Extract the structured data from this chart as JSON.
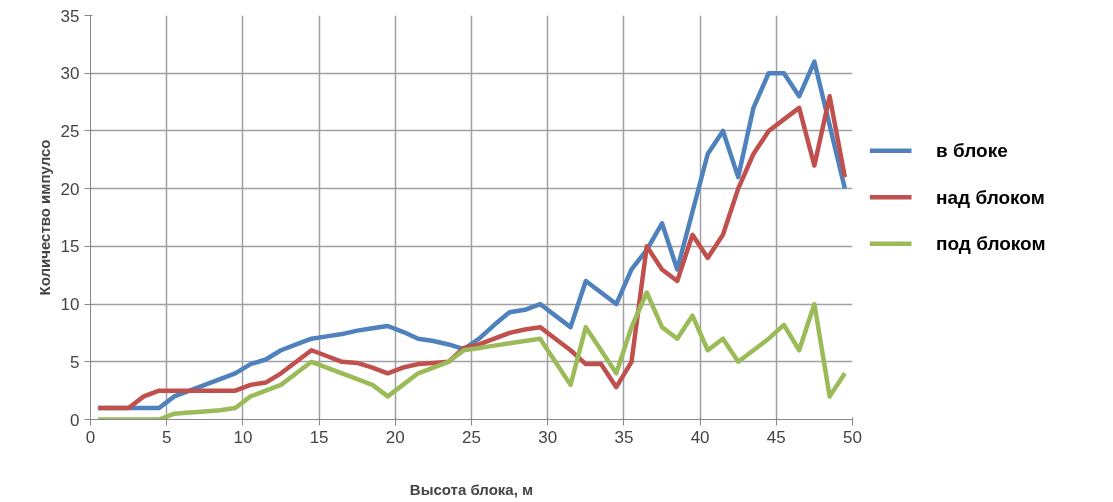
{
  "chart_data": {
    "type": "line",
    "xlabel": "Высота блока, м",
    "ylabel": "Количество импулсо",
    "x": [
      0.5,
      1.5,
      2.5,
      3.5,
      4.5,
      5.5,
      6.5,
      7.5,
      8.5,
      9.5,
      10.5,
      11.5,
      12.5,
      13.5,
      14.5,
      15.5,
      16.5,
      17.5,
      18.5,
      19.5,
      20.5,
      21.5,
      22.5,
      23.5,
      24.5,
      25.5,
      26.5,
      27.5,
      28.5,
      29.5,
      30.5,
      31.5,
      32.5,
      33.5,
      34.5,
      35.5,
      36.5,
      37.5,
      38.5,
      39.5,
      40.5,
      41.5,
      42.5,
      43.5,
      44.5,
      45.5,
      46.5,
      47.5,
      48.5,
      49.5
    ],
    "series": [
      {
        "name": "в блоке",
        "color": "#4f81bd",
        "values": [
          1,
          1,
          1,
          1,
          1,
          2,
          2.5,
          3,
          3.5,
          4,
          4.8,
          5.2,
          6,
          6.5,
          7,
          7.2,
          7.4,
          7.7,
          7.9,
          8.1,
          7.6,
          7,
          6.8,
          6.5,
          6.1,
          7,
          8.2,
          9.3,
          9.5,
          10,
          9,
          8,
          12,
          11,
          10,
          13,
          14.7,
          17,
          13,
          18,
          23,
          25,
          21,
          27,
          30,
          30,
          28,
          31,
          25.5,
          20
        ]
      },
      {
        "name": "над блоком",
        "color": "#c0504d",
        "values": [
          1,
          1,
          1,
          2,
          2.5,
          2.5,
          2.5,
          2.5,
          2.5,
          2.5,
          3,
          3.2,
          4,
          5,
          6,
          5.5,
          5,
          4.9,
          4.5,
          4,
          4.5,
          4.8,
          4.9,
          5,
          6.2,
          6.5,
          7,
          7.5,
          7.8,
          8,
          7,
          6,
          4.8,
          4.8,
          2.8,
          5,
          15,
          13,
          12,
          16,
          14,
          16,
          20,
          23,
          25,
          26,
          27,
          22,
          28,
          21
        ]
      },
      {
        "name": "под блоком",
        "color": "#9bbb59",
        "values": [
          0,
          0,
          0,
          0,
          0,
          0.5,
          0.6,
          0.7,
          0.8,
          1,
          2,
          2.5,
          3,
          4,
          5,
          4.5,
          4,
          3.5,
          3,
          2,
          3,
          4,
          4.5,
          5,
          6,
          6.2,
          6.4,
          6.6,
          6.8,
          7,
          5,
          3,
          8,
          6,
          4,
          8,
          11,
          8,
          7,
          9,
          6,
          7,
          5,
          6,
          7,
          8.2,
          6,
          10,
          2,
          4
        ]
      }
    ],
    "xlim": [
      0,
      50
    ],
    "ylim": [
      0,
      35
    ],
    "xticks": [
      0,
      5,
      10,
      15,
      20,
      25,
      30,
      35,
      40,
      45,
      50
    ],
    "yticks": [
      0,
      5,
      10,
      15,
      20,
      25,
      30,
      35
    ],
    "grid": true,
    "legend": "right",
    "marker": "none",
    "line_style": "solid"
  }
}
